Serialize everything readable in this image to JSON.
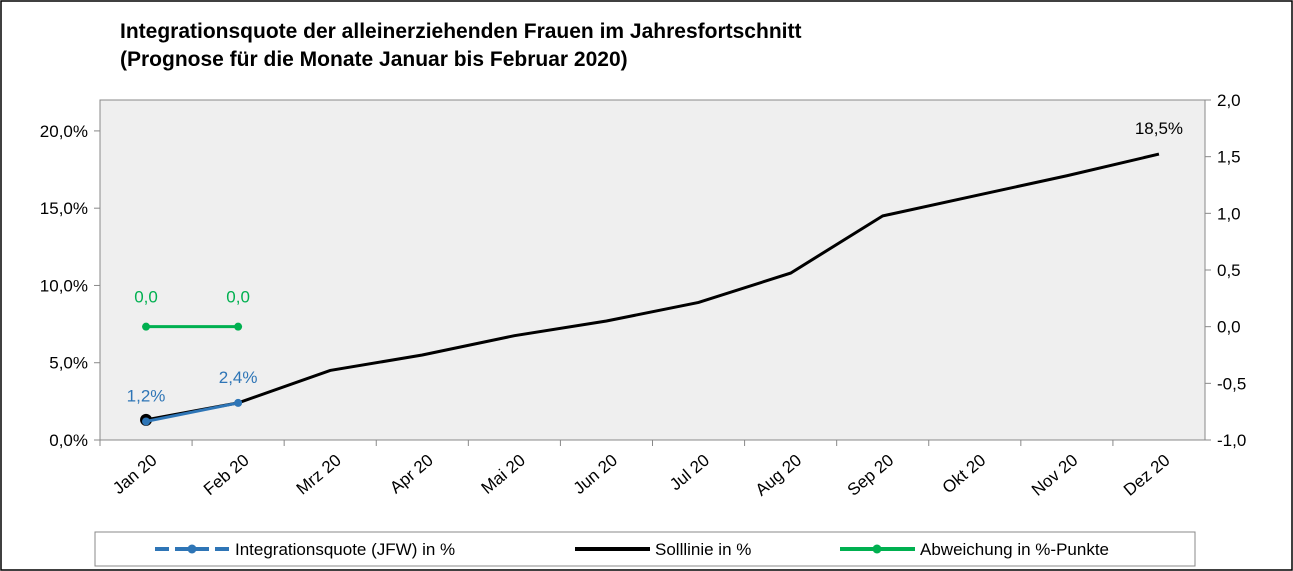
{
  "chart_data": {
    "type": "line",
    "title": "Integrationsquote der alleinerziehenden Frauen im Jahresfortschnitt",
    "subtitle": "(Prognose für die Monate Januar bis Februar 2020)",
    "categories": [
      "Jan 20",
      "Feb 20",
      "Mrz 20",
      "Apr 20",
      "Mai 20",
      "Jun 20",
      "Jul 20",
      "Aug 20",
      "Sep 20",
      "Okt 20",
      "Nov 20",
      "Dez 20"
    ],
    "series": [
      {
        "name": "Integrationsquote (JFW) in %",
        "color": "#2e75b6",
        "values": [
          1.2,
          2.4,
          null,
          null,
          null,
          null,
          null,
          null,
          null,
          null,
          null,
          null
        ],
        "value_labels": [
          "1,2%",
          "2,4%",
          null,
          null,
          null,
          null,
          null,
          null,
          null,
          null,
          null,
          null
        ]
      },
      {
        "name": "Solllinie in %",
        "color": "#000000",
        "values": [
          1.3,
          2.4,
          4.5,
          5.5,
          6.75,
          7.7,
          8.9,
          10.8,
          14.5,
          15.8,
          17.1,
          18.5
        ],
        "value_labels": [
          null,
          null,
          null,
          null,
          null,
          null,
          null,
          null,
          null,
          null,
          null,
          "18,5%"
        ]
      },
      {
        "name": "Abweichung in %-Punkte",
        "color": "#00b050",
        "axis": "y2",
        "values": [
          0,
          0,
          null,
          null,
          null,
          null,
          null,
          null,
          null,
          null,
          null,
          null
        ],
        "value_labels": [
          "0,0",
          "0,0",
          null,
          null,
          null,
          null,
          null,
          null,
          null,
          null,
          null,
          null
        ]
      }
    ],
    "ylim": [
      0,
      22
    ],
    "yticks": [
      {
        "value": 0,
        "label": "0,0%"
      },
      {
        "value": 5,
        "label": "5,0%"
      },
      {
        "value": 10,
        "label": "10,0%"
      },
      {
        "value": 15,
        "label": "15,0%"
      },
      {
        "value": 20,
        "label": "20,0%"
      }
    ],
    "y2lim": [
      -1,
      2
    ],
    "y2ticks": [
      {
        "value": -1,
        "label": "-1,0"
      },
      {
        "value": -0.5,
        "label": "-0,5"
      },
      {
        "value": 0,
        "label": "0,0"
      },
      {
        "value": 0.5,
        "label": "0,5"
      },
      {
        "value": 1,
        "label": "1,0"
      },
      {
        "value": 1.5,
        "label": "1,5"
      },
      {
        "value": 2,
        "label": "2,0"
      }
    ]
  }
}
